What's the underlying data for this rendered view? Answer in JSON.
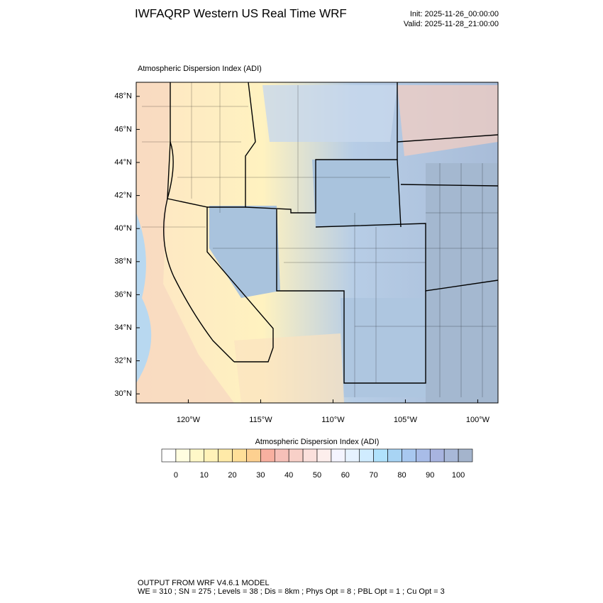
{
  "header": {
    "title": "IWFAQRP Western US Real Time WRF",
    "init": "Init: 2025-11-26_00:00:00",
    "valid": "Valid: 2025-11-28_21:00:00"
  },
  "map": {
    "subtitle": "Atmospheric Dispersion Index   (ADI)",
    "lonlim": [
      -123.6,
      -98.6
    ],
    "latlim": [
      29.45,
      48.85
    ],
    "lat_ticks": [
      {
        "value": 30,
        "label": "30°N"
      },
      {
        "value": 32,
        "label": "32°N"
      },
      {
        "value": 34,
        "label": "34°N"
      },
      {
        "value": 36,
        "label": "36°N"
      },
      {
        "value": 38,
        "label": "38°N"
      },
      {
        "value": 40,
        "label": "40°N"
      },
      {
        "value": 42,
        "label": "42°N"
      },
      {
        "value": 44,
        "label": "44°N"
      },
      {
        "value": 46,
        "label": "46°N"
      },
      {
        "value": 48,
        "label": "48°N"
      }
    ],
    "lon_ticks": [
      {
        "value": -120,
        "label": "120°W"
      },
      {
        "value": -115,
        "label": "115°W"
      },
      {
        "value": -110,
        "label": "110°W"
      },
      {
        "value": -105,
        "label": "105°W"
      },
      {
        "value": -100,
        "label": "100°W"
      }
    ]
  },
  "colorbar": {
    "label": "Atmospheric Dispersion Index  (ADI)",
    "levels": [
      0,
      5,
      10,
      15,
      20,
      25,
      30,
      35,
      40,
      45,
      50,
      55,
      60,
      65,
      70,
      75,
      80,
      85,
      90,
      95,
      100
    ],
    "colors": [
      "#ffffff",
      "#fffde0",
      "#fff8c8",
      "#fff2b8",
      "#ffeaa8",
      "#ffdf98",
      "#fdd090",
      "#f8b0a0",
      "#f6c0b8",
      "#f8d0c8",
      "#fbe0dc",
      "#fdeeec",
      "#f4f4ff",
      "#e6f2ff",
      "#d0ecff",
      "#b0e2fc",
      "#a8d4f4",
      "#a8c8f0",
      "#a8bce8",
      "#a8b4e0",
      "#a8b8d8",
      "#a4b4cc"
    ],
    "ticks": [
      0,
      10,
      20,
      30,
      40,
      50,
      60,
      70,
      80,
      90,
      100
    ]
  },
  "footer": {
    "line1": "OUTPUT FROM WRF V4.6.1 MODEL",
    "line2": "WE = 310 ; SN = 275 ; Levels = 38 ; Dis = 8km ; Phys Opt = 8 ; PBL Opt = 1 ; Cu Opt = 3"
  }
}
